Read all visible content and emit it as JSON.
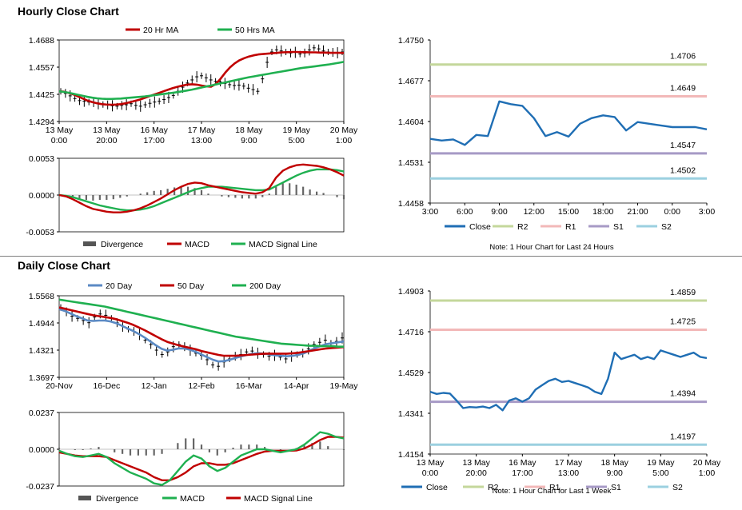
{
  "sections": {
    "hourly_title": "Hourly Close Chart",
    "daily_title": "Daily Close Chart"
  },
  "notes": {
    "hourly": "Note: 1 Hour Chart for Last 24 Hours",
    "daily": "Note: 1 Hour Chart for Last 1 Week"
  },
  "colors": {
    "red": "#c00000",
    "green": "#1fb050",
    "blue": "#5b8ac4",
    "close": "#1f6eb4",
    "r2": "#c4d79b",
    "r1": "#f2b8b8",
    "s1": "#a79ac6",
    "s2": "#9bd0e0",
    "grid": "#d9d9d9"
  },
  "chart_data": [
    {
      "id": "hourly_price",
      "type": "line",
      "legend": [
        "20 Hr MA",
        "50 Hrs MA"
      ],
      "x_tick_labels": [
        [
          "13 May",
          "0:00"
        ],
        [
          "13 May",
          "20:00"
        ],
        [
          "16 May",
          "17:00"
        ],
        [
          "17 May",
          "13:00"
        ],
        [
          "18 May",
          "9:00"
        ],
        [
          "19 May",
          "5:00"
        ],
        [
          "20 May",
          "1:00"
        ]
      ],
      "y_tick_labels": [
        "1.4688",
        "1.4557",
        "1.4425",
        "1.4294"
      ],
      "ylim": [
        1.4294,
        1.4688
      ],
      "series": [
        {
          "name": "Price",
          "kind": "bars",
          "values": [
            1.444,
            1.443,
            1.4418,
            1.4405,
            1.4395,
            1.4392,
            1.4388,
            1.4385,
            1.438,
            1.4376,
            1.4374,
            1.437,
            1.4368,
            1.4372,
            1.4375,
            1.438,
            1.4372,
            1.4368,
            1.4375,
            1.4382,
            1.4388,
            1.4392,
            1.44,
            1.441,
            1.442,
            1.444,
            1.446,
            1.448,
            1.4495,
            1.451,
            1.4515,
            1.4505,
            1.4495,
            1.4488,
            1.4485,
            1.4478,
            1.4472,
            1.4468,
            1.447,
            1.4465,
            1.4455,
            1.4448,
            1.444,
            1.45,
            1.458,
            1.463,
            1.464,
            1.4635,
            1.463,
            1.4625,
            1.4628,
            1.462,
            1.4625,
            1.464,
            1.465,
            1.4645,
            1.4635,
            1.463,
            1.4628,
            1.4626,
            1.463
          ]
        },
        {
          "name": "20 Hr MA",
          "values": [
            1.444,
            1.4438,
            1.4432,
            1.4425,
            1.4415,
            1.4405,
            1.4395,
            1.4388,
            1.4382,
            1.4378,
            1.4376,
            1.4375,
            1.4376,
            1.4378,
            1.4382,
            1.4388,
            1.4394,
            1.44,
            1.4408,
            1.4416,
            1.4424,
            1.4432,
            1.444,
            1.4448,
            1.4456,
            1.4462,
            1.4468,
            1.4472,
            1.4474,
            1.4472,
            1.4468,
            1.4464,
            1.4462,
            1.4475,
            1.45,
            1.453,
            1.4555,
            1.4575,
            1.459,
            1.46,
            1.4608,
            1.4614,
            1.4618,
            1.462,
            1.4622,
            1.4624,
            1.4626,
            1.4628,
            1.4629,
            1.463,
            1.463,
            1.4629,
            1.4629,
            1.4628,
            1.4628,
            1.4627,
            1.4627,
            1.4626,
            1.4626,
            1.4626,
            1.4625
          ]
        },
        {
          "name": "50 Hrs MA",
          "values": [
            1.444,
            1.4437,
            1.4433,
            1.4428,
            1.4423,
            1.4418,
            1.4413,
            1.4409,
            1.4406,
            1.4404,
            1.4403,
            1.4403,
            1.4404,
            1.4405,
            1.4407,
            1.4409,
            1.4411,
            1.4413,
            1.4415,
            1.4418,
            1.4421,
            1.4424,
            1.4427,
            1.443,
            1.4433,
            1.4436,
            1.444,
            1.4444,
            1.4448,
            1.4453,
            1.4458,
            1.4463,
            1.4468,
            1.4473,
            1.4478,
            1.4483,
            1.4488,
            1.4493,
            1.4498,
            1.4503,
            1.4508,
            1.4512,
            1.4516,
            1.452,
            1.4524,
            1.4528,
            1.4532,
            1.4536,
            1.454,
            1.4544,
            1.4548,
            1.4552,
            1.4555,
            1.4558,
            1.4561,
            1.4564,
            1.4567,
            1.457,
            1.4574,
            1.4578,
            1.4582
          ]
        }
      ]
    },
    {
      "id": "hourly_macd",
      "type": "line",
      "legend": [
        "Divergence",
        "MACD",
        "MACD Signal Line"
      ],
      "y_tick_labels": [
        "0.0053",
        "0.0000",
        "-0.0053"
      ],
      "ylim": [
        -0.0053,
        0.0053
      ],
      "series": [
        {
          "name": "MACD",
          "values": [
            0.0,
            -0.0002,
            -0.0006,
            -0.0011,
            -0.0016,
            -0.002,
            -0.0022,
            -0.0024,
            -0.0025,
            -0.0025,
            -0.0024,
            -0.0022,
            -0.0019,
            -0.0015,
            -0.001,
            -0.0005,
            0.0001,
            0.0007,
            0.0012,
            0.0016,
            0.0018,
            0.0017,
            0.0014,
            0.0012,
            0.001,
            0.0008,
            0.0006,
            0.0004,
            0.0003,
            0.0002,
            0.0004,
            0.001,
            0.0025,
            0.0035,
            0.004,
            0.0043,
            0.0044,
            0.0043,
            0.0042,
            0.004,
            0.0037,
            0.0033,
            0.0028
          ]
        },
        {
          "name": "MACD Signal Line",
          "values": [
            0.0,
            -0.0001,
            -0.0003,
            -0.0006,
            -0.0009,
            -0.0012,
            -0.0015,
            -0.0017,
            -0.0019,
            -0.0021,
            -0.0022,
            -0.0022,
            -0.0021,
            -0.0019,
            -0.0016,
            -0.0012,
            -0.0008,
            -0.0004,
            0.0,
            0.0004,
            0.0008,
            0.001,
            0.0012,
            0.0012,
            0.0012,
            0.0011,
            0.001,
            0.0009,
            0.0008,
            0.0007,
            0.0007,
            0.0008,
            0.0013,
            0.0018,
            0.0023,
            0.0028,
            0.0032,
            0.0035,
            0.0037,
            0.0037,
            0.0037,
            0.0036,
            0.0034
          ]
        },
        {
          "name": "Divergence",
          "kind": "histogram",
          "values": [
            0.0,
            -0.0001,
            -0.0003,
            -0.0005,
            -0.0007,
            -0.0008,
            -0.0007,
            -0.0007,
            -0.0006,
            -0.0004,
            -0.0002,
            0.0,
            0.0002,
            0.0004,
            0.0006,
            0.0007,
            0.0009,
            0.0011,
            0.0012,
            0.0012,
            0.001,
            0.0007,
            0.0002,
            0.0,
            -0.0002,
            -0.0003,
            -0.0004,
            -0.0005,
            -0.0005,
            -0.0005,
            -0.0003,
            0.0002,
            0.0012,
            0.0017,
            0.0017,
            0.0015,
            0.0012,
            0.0008,
            0.0005,
            0.0003,
            0.0,
            -0.0003,
            -0.0006
          ]
        }
      ]
    },
    {
      "id": "hourly_pivot",
      "type": "line",
      "legend": [
        "Close",
        "R2",
        "R1",
        "S1",
        "S2"
      ],
      "x_tick_labels": [
        "3:00",
        "6:00",
        "9:00",
        "12:00",
        "15:00",
        "18:00",
        "21:00",
        "0:00",
        "3:00"
      ],
      "y_tick_labels": [
        "1.4750",
        "1.4677",
        "1.4604",
        "1.4531",
        "1.4458"
      ],
      "ylim": [
        1.4458,
        1.475
      ],
      "levels": {
        "R2": 1.4706,
        "R1": 1.4649,
        "S1": 1.4547,
        "S2": 1.4502
      },
      "level_labels": {
        "R2": "1.4706",
        "R1": "1.4649",
        "S1": "1.4547",
        "S2": "1.4502"
      },
      "series": [
        {
          "name": "Close",
          "values": [
            1.4573,
            1.457,
            1.4572,
            1.4562,
            1.458,
            1.4578,
            1.464,
            1.4635,
            1.4632,
            1.461,
            1.4578,
            1.4585,
            1.4577,
            1.46,
            1.461,
            1.4615,
            1.4612,
            1.4588,
            1.4603,
            1.46,
            1.4597,
            1.4594,
            1.4594,
            1.4594,
            1.459
          ]
        }
      ]
    },
    {
      "id": "daily_price",
      "type": "line",
      "legend": [
        "20 Day",
        "50 Day",
        "200 Day"
      ],
      "x_tick_labels": [
        "20-Nov",
        "16-Dec",
        "12-Jan",
        "12-Feb",
        "16-Mar",
        "14-Apr",
        "19-May"
      ],
      "y_tick_labels": [
        "1.5568",
        "1.4944",
        "1.4321",
        "1.3697"
      ],
      "ylim": [
        1.3697,
        1.5568
      ],
      "series": [
        {
          "name": "Price",
          "kind": "bars",
          "values": [
            1.53,
            1.52,
            1.51,
            1.505,
            1.5,
            1.495,
            1.508,
            1.515,
            1.512,
            1.505,
            1.495,
            1.487,
            1.48,
            1.475,
            1.468,
            1.455,
            1.445,
            1.432,
            1.422,
            1.428,
            1.44,
            1.445,
            1.44,
            1.432,
            1.425,
            1.42,
            1.41,
            1.398,
            1.395,
            1.405,
            1.412,
            1.418,
            1.422,
            1.428,
            1.43,
            1.425,
            1.422,
            1.418,
            1.42,
            1.416,
            1.412,
            1.418,
            1.422,
            1.425,
            1.435,
            1.445,
            1.45,
            1.455,
            1.448,
            1.452,
            1.46
          ]
        },
        {
          "name": "20 Day",
          "values": [
            1.526,
            1.522,
            1.516,
            1.51,
            1.505,
            1.5,
            1.499,
            1.5,
            1.5,
            1.498,
            1.494,
            1.488,
            1.482,
            1.476,
            1.469,
            1.461,
            1.452,
            1.443,
            1.435,
            1.431,
            1.433,
            1.436,
            1.436,
            1.433,
            1.428,
            1.422,
            1.416,
            1.41,
            1.406,
            1.407,
            1.41,
            1.414,
            1.418,
            1.421,
            1.424,
            1.425,
            1.424,
            1.422,
            1.42,
            1.419,
            1.418,
            1.419,
            1.421,
            1.425,
            1.431,
            1.437,
            1.442,
            1.446,
            1.448,
            1.45,
            1.452
          ]
        },
        {
          "name": "50 Day",
          "values": [
            1.53,
            1.527,
            1.524,
            1.521,
            1.518,
            1.515,
            1.512,
            1.51,
            1.508,
            1.506,
            1.503,
            1.499,
            1.495,
            1.49,
            1.484,
            1.478,
            1.471,
            1.464,
            1.457,
            1.451,
            1.447,
            1.443,
            1.44,
            1.437,
            1.434,
            1.43,
            1.427,
            1.424,
            1.421,
            1.419,
            1.419,
            1.419,
            1.42,
            1.421,
            1.422,
            1.423,
            1.424,
            1.424,
            1.424,
            1.424,
            1.424,
            1.425,
            1.426,
            1.428,
            1.43,
            1.432,
            1.434,
            1.436,
            1.437,
            1.438,
            1.439
          ]
        },
        {
          "name": "200 Day",
          "values": [
            1.548,
            1.546,
            1.544,
            1.542,
            1.54,
            1.538,
            1.536,
            1.534,
            1.532,
            1.529,
            1.526,
            1.523,
            1.52,
            1.517,
            1.514,
            1.511,
            1.508,
            1.505,
            1.502,
            1.499,
            1.496,
            1.493,
            1.49,
            1.487,
            1.484,
            1.481,
            1.478,
            1.475,
            1.472,
            1.469,
            1.466,
            1.463,
            1.461,
            1.459,
            1.457,
            1.455,
            1.453,
            1.451,
            1.449,
            1.447,
            1.446,
            1.445,
            1.444,
            1.443,
            1.442,
            1.442,
            1.441,
            1.441,
            1.441,
            1.44,
            1.44
          ]
        }
      ]
    },
    {
      "id": "daily_macd",
      "type": "line",
      "legend": [
        "Divergence",
        "MACD",
        "MACD Signal Line"
      ],
      "y_tick_labels": [
        "0.0237",
        "0.0000",
        "-0.0237"
      ],
      "ylim": [
        -0.0237,
        0.0237
      ],
      "series": [
        {
          "name": "MACD",
          "values": [
            -0.001,
            -0.003,
            -0.0045,
            -0.005,
            -0.004,
            -0.003,
            -0.005,
            -0.009,
            -0.012,
            -0.015,
            -0.017,
            -0.019,
            -0.022,
            -0.023,
            -0.02,
            -0.014,
            -0.008,
            -0.004,
            -0.006,
            -0.011,
            -0.014,
            -0.012,
            -0.008,
            -0.004,
            -0.002,
            0.0,
            0.0,
            -0.001,
            -0.002,
            -0.001,
            0.0,
            0.003,
            0.007,
            0.011,
            0.01,
            0.008,
            0.007
          ]
        },
        {
          "name": "MACD Signal Line",
          "values": [
            -0.002,
            -0.003,
            -0.004,
            -0.0045,
            -0.0045,
            -0.0045,
            -0.005,
            -0.007,
            -0.009,
            -0.011,
            -0.013,
            -0.015,
            -0.018,
            -0.02,
            -0.02,
            -0.018,
            -0.015,
            -0.011,
            -0.009,
            -0.009,
            -0.01,
            -0.01,
            -0.009,
            -0.007,
            -0.005,
            -0.003,
            -0.0015,
            -0.001,
            -0.001,
            -0.001,
            -0.0008,
            0.0005,
            0.003,
            0.006,
            0.008,
            0.008,
            0.0075
          ]
        },
        {
          "name": "Divergence",
          "kind": "histogram",
          "values": [
            0.001,
            0.0,
            -0.0005,
            -0.0005,
            0.0005,
            0.0015,
            0.0,
            -0.002,
            -0.003,
            -0.004,
            -0.004,
            -0.004,
            -0.004,
            -0.003,
            0.0,
            0.004,
            0.007,
            0.007,
            0.003,
            -0.002,
            -0.004,
            -0.002,
            0.001,
            0.003,
            0.003,
            0.003,
            0.0015,
            0.0,
            -0.001,
            0.0,
            0.0008,
            0.0025,
            0.004,
            0.005,
            0.002,
            0.0,
            -0.0005
          ]
        }
      ]
    },
    {
      "id": "daily_pivot",
      "type": "line",
      "legend": [
        "Close",
        "R2",
        "R1",
        "S1",
        "S2"
      ],
      "x_tick_labels": [
        [
          "13 May",
          "0:00"
        ],
        [
          "13 May",
          "20:00"
        ],
        [
          "16 May",
          "17:00"
        ],
        [
          "17 May",
          "13:00"
        ],
        [
          "18 May",
          "9:00"
        ],
        [
          "19 May",
          "5:00"
        ],
        [
          "20 May",
          "1:00"
        ]
      ],
      "y_tick_labels": [
        "1.4903",
        "1.4716",
        "1.4529",
        "1.4341",
        "1.4154"
      ],
      "ylim": [
        1.4154,
        1.4903
      ],
      "levels": {
        "R2": 1.4859,
        "R1": 1.4725,
        "S1": 1.4394,
        "S2": 1.4197
      },
      "level_labels": {
        "R2": "1.4859",
        "R1": "1.4725",
        "S1": "1.4394",
        "S2": "1.4197"
      },
      "series": [
        {
          "name": "Close",
          "values": [
            1.444,
            1.443,
            1.4435,
            1.4432,
            1.44,
            1.4365,
            1.437,
            1.4368,
            1.4372,
            1.4365,
            1.438,
            1.4355,
            1.44,
            1.441,
            1.4395,
            1.441,
            1.445,
            1.447,
            1.449,
            1.45,
            1.4485,
            1.449,
            1.448,
            1.447,
            1.446,
            1.444,
            1.443,
            1.45,
            1.462,
            1.459,
            1.46,
            1.461,
            1.459,
            1.46,
            1.459,
            1.463,
            1.462,
            1.461,
            1.46,
            1.461,
            1.462,
            1.46,
            1.4595
          ]
        }
      ]
    }
  ]
}
